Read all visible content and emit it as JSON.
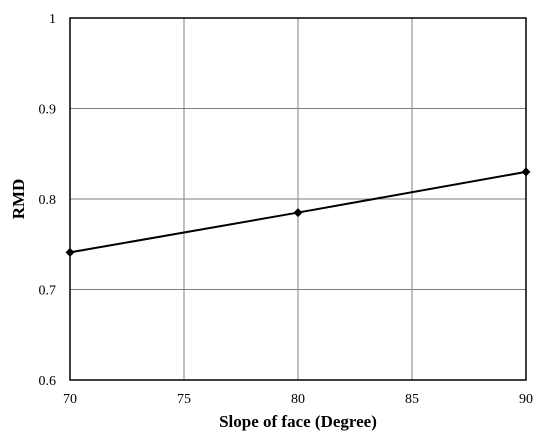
{
  "chart_data": {
    "type": "line",
    "title": "",
    "xlabel": "Slope of face (Degree)",
    "ylabel": "RMD",
    "xlim": [
      70,
      90
    ],
    "ylim": [
      0.6,
      1.0
    ],
    "x_ticks": [
      "70",
      "75",
      "80",
      "85",
      "90"
    ],
    "y_ticks": [
      "0.6",
      "0.7",
      "0.8",
      "0.9",
      "1"
    ],
    "grid": true,
    "legend": "none",
    "series": [
      {
        "x": [
          70,
          80,
          90
        ],
        "values": [
          0.741,
          0.785,
          0.83
        ],
        "color": "#000000",
        "marker": "diamond"
      }
    ]
  }
}
